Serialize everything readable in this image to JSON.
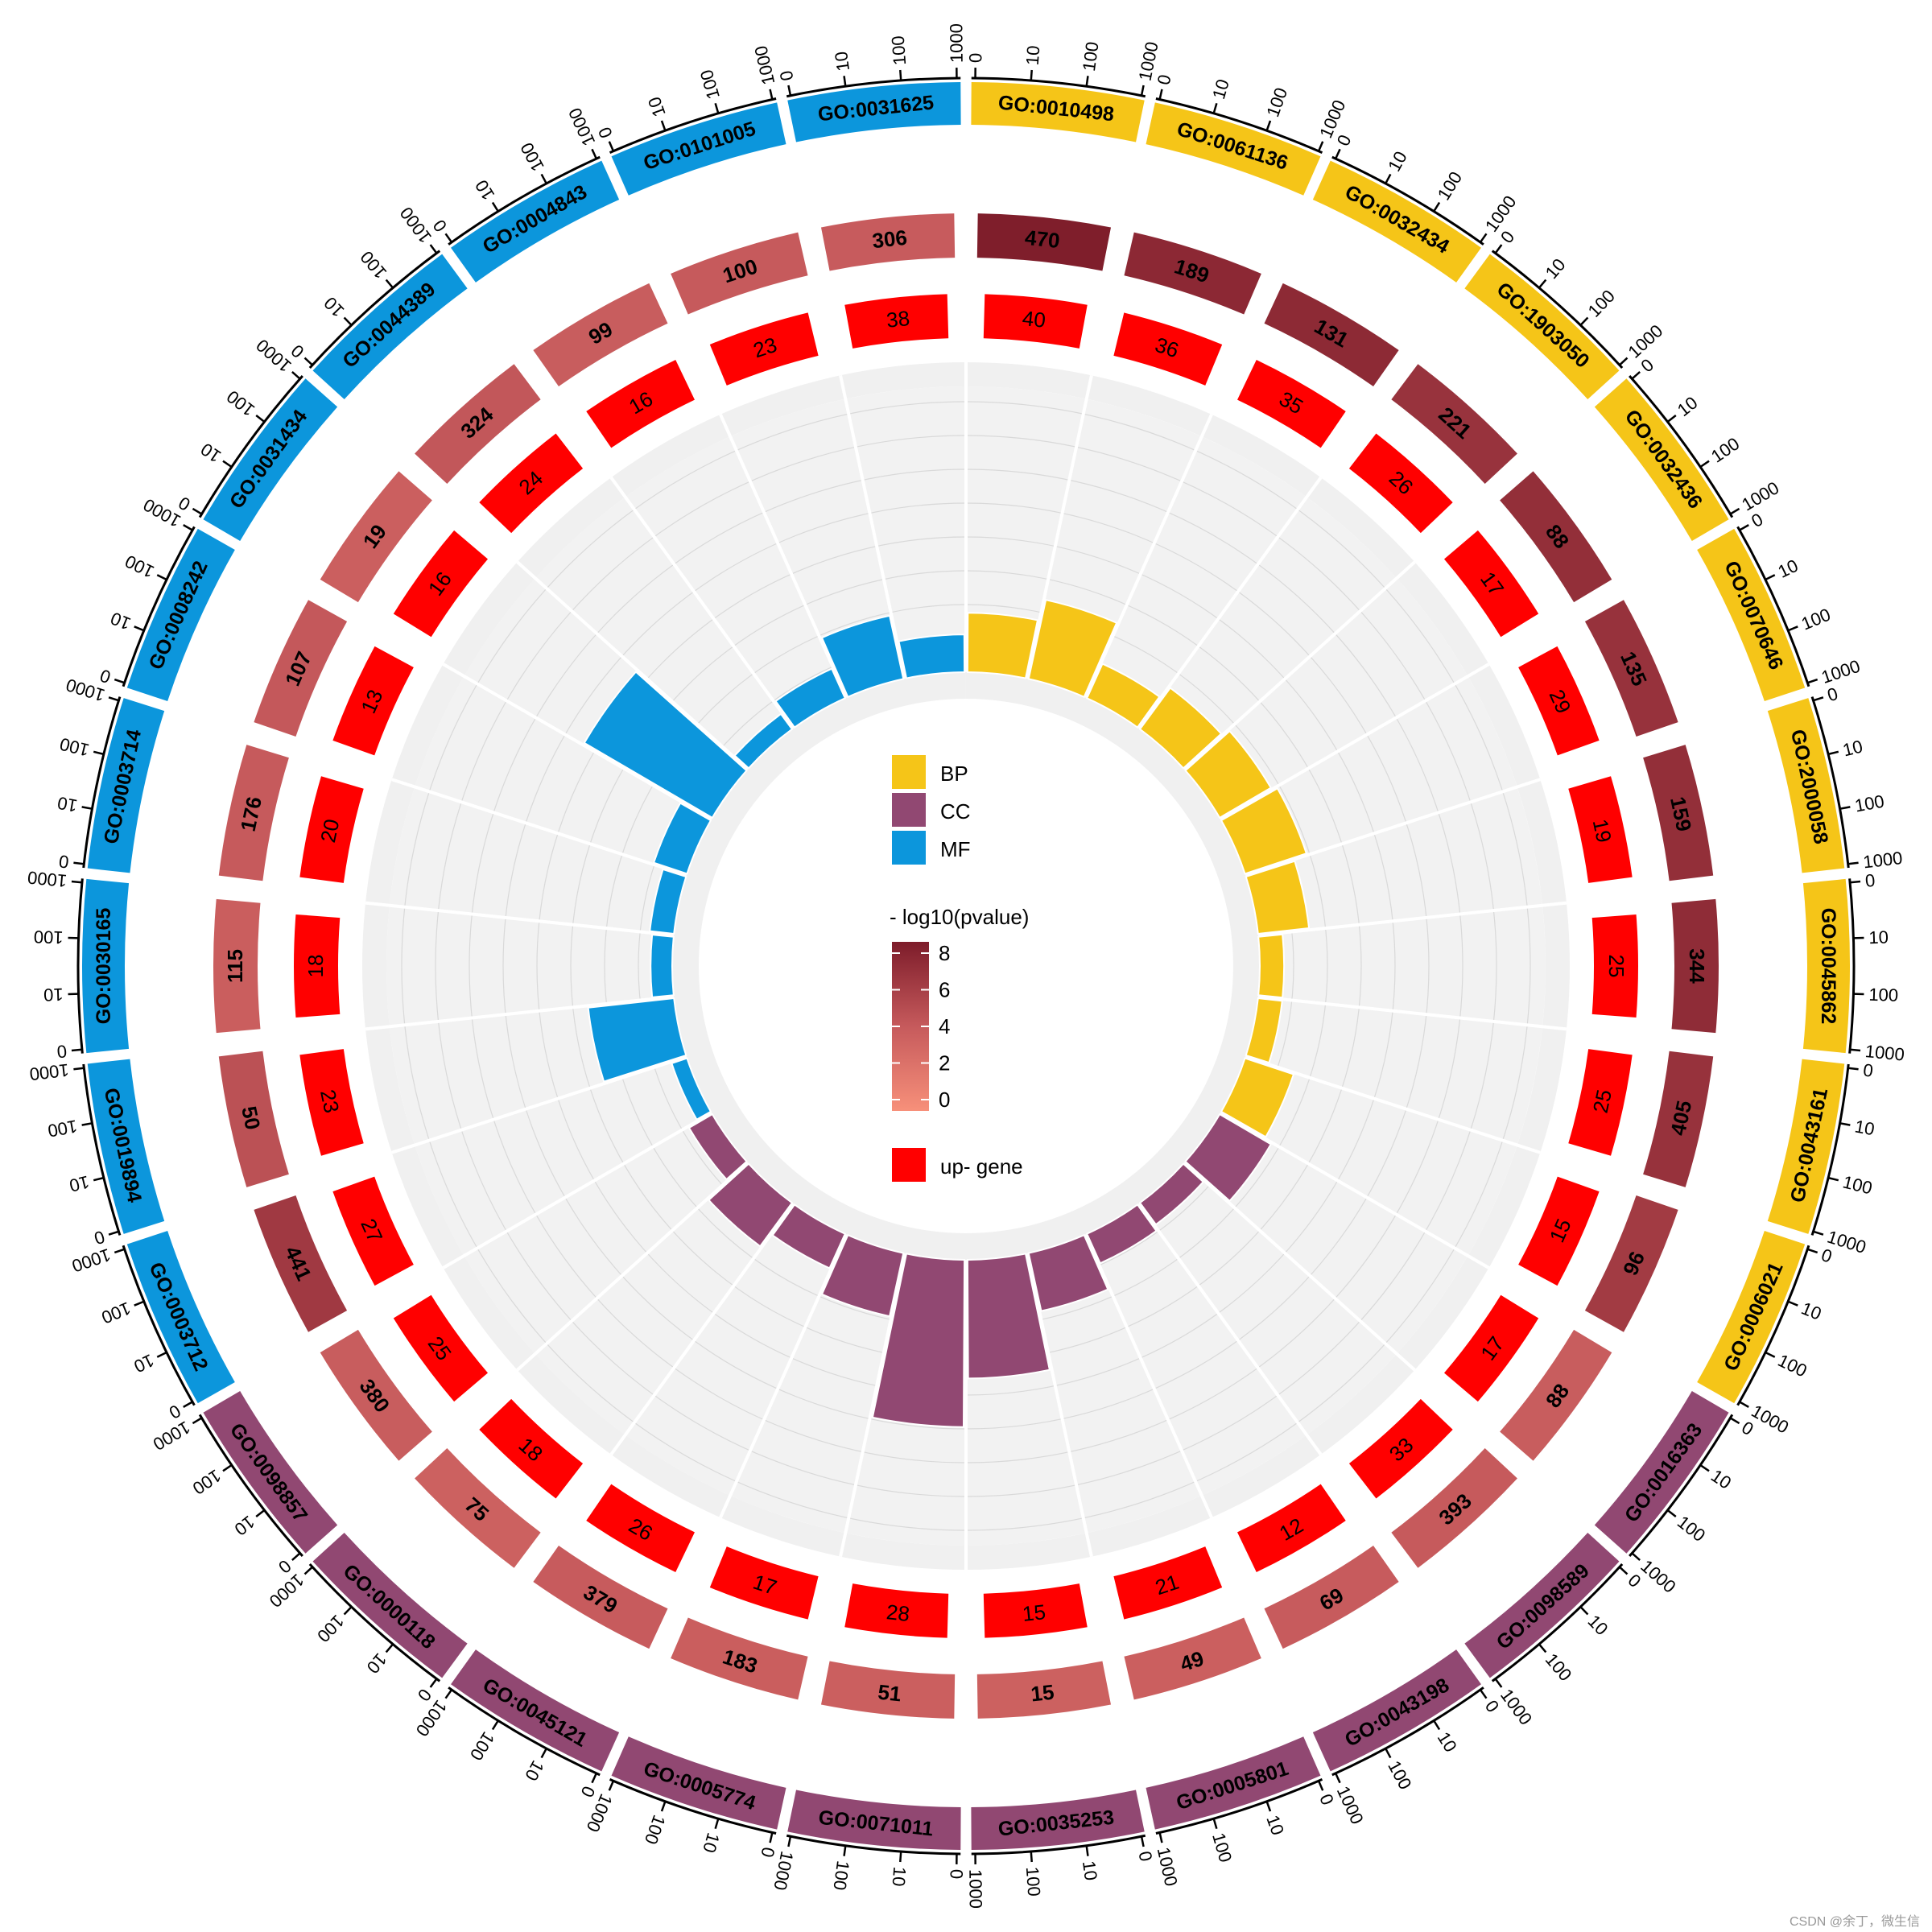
{
  "chart_data": {
    "type": "circular-go-enrichment",
    "categories_legend": [
      {
        "key": "BP",
        "label": "BP",
        "color": "#f5c518"
      },
      {
        "key": "CC",
        "label": "CC",
        "color": "#914872"
      },
      {
        "key": "MF",
        "label": "MF",
        "color": "#0c96dc"
      }
    ],
    "gradient_legend": {
      "title": "- log10(pvalue)",
      "ticks": [
        "8",
        "6",
        "4",
        "2",
        "0"
      ],
      "low_color": "#f7907a",
      "high_color": "#7d1c2a"
    },
    "up_legend": {
      "label": "up- gene",
      "color": "#ff0000"
    },
    "scale_ticks": [
      "0",
      "10",
      "100",
      "1000"
    ],
    "terms": [
      {
        "id": "GO:0010498",
        "cat": "BP",
        "count": 470,
        "up": 40,
        "pval": 7.9,
        "bar": 0.22
      },
      {
        "id": "GO:0061136",
        "cat": "BP",
        "count": 189,
        "up": 36,
        "pval": 7.2,
        "bar": 0.3
      },
      {
        "id": "GO:0032434",
        "cat": "BP",
        "count": 131,
        "up": 35,
        "pval": 7.1,
        "bar": 0.14
      },
      {
        "id": "GO:1903050",
        "cat": "BP",
        "count": 221,
        "up": 26,
        "pval": 6.5,
        "bar": 0.19
      },
      {
        "id": "GO:0032436",
        "cat": "BP",
        "count": 88,
        "up": 17,
        "pval": 6.8,
        "bar": 0.22
      },
      {
        "id": "GO:0070646",
        "cat": "BP",
        "count": 135,
        "up": 29,
        "pval": 6.6,
        "bar": 0.24
      },
      {
        "id": "GO:2000058",
        "cat": "BP",
        "count": 159,
        "up": 19,
        "pval": 6.8,
        "bar": 0.19
      },
      {
        "id": "GO:0045862",
        "cat": "BP",
        "count": 344,
        "up": 25,
        "pval": 7.0,
        "bar": 0.09
      },
      {
        "id": "GO:0043161",
        "cat": "BP",
        "count": 405,
        "up": 25,
        "pval": 6.6,
        "bar": 0.09
      },
      {
        "id": "GO:0006021",
        "cat": "BP",
        "count": 96,
        "up": 15,
        "pval": 6.0,
        "bar": 0.19
      },
      {
        "id": "GO:0016363",
        "cat": "CC",
        "count": 88,
        "up": 17,
        "pval": 3.8,
        "bar": 0.22
      },
      {
        "id": "GO:0098589",
        "cat": "CC",
        "count": 393,
        "up": 33,
        "pval": 4.0,
        "bar": 0.1
      },
      {
        "id": "GO:0043198",
        "cat": "CC",
        "count": 69,
        "up": 12,
        "pval": 3.9,
        "bar": 0.12
      },
      {
        "id": "GO:0005801",
        "cat": "CC",
        "count": 49,
        "up": 21,
        "pval": 3.6,
        "bar": 0.22
      },
      {
        "id": "GO:0035253",
        "cat": "CC",
        "count": 15,
        "up": 15,
        "pval": 3.5,
        "bar": 0.44
      },
      {
        "id": "GO:0071011",
        "cat": "CC",
        "count": 51,
        "up": 28,
        "pval": 3.6,
        "bar": 0.62
      },
      {
        "id": "GO:0005774",
        "cat": "CC",
        "count": 183,
        "up": 17,
        "pval": 3.7,
        "bar": 0.24
      },
      {
        "id": "GO:0045121",
        "cat": "CC",
        "count": 379,
        "up": 26,
        "pval": 3.9,
        "bar": 0.14
      },
      {
        "id": "GO:0000118",
        "cat": "CC",
        "count": 75,
        "up": 18,
        "pval": 3.5,
        "bar": 0.2
      },
      {
        "id": "GO:0098857",
        "cat": "CC",
        "count": 380,
        "up": 25,
        "pval": 3.8,
        "bar": 0.1
      },
      {
        "id": "GO:0003712",
        "cat": "MF",
        "count": 441,
        "up": 27,
        "pval": 6.1,
        "bar": 0.06
      },
      {
        "id": "GO:0019894",
        "cat": "MF",
        "count": 50,
        "up": 23,
        "pval": 4.6,
        "bar": 0.32
      },
      {
        "id": "GO:0030165",
        "cat": "MF",
        "count": 115,
        "up": 18,
        "pval": 3.7,
        "bar": 0.08
      },
      {
        "id": "GO:0003714",
        "cat": "MF",
        "count": 176,
        "up": 20,
        "pval": 4.0,
        "bar": 0.09
      },
      {
        "id": "GO:0008242",
        "cat": "MF",
        "count": 107,
        "up": 13,
        "pval": 4.1,
        "bar": 0.13
      },
      {
        "id": "GO:0031434",
        "cat": "MF",
        "count": 19,
        "up": 16,
        "pval": 3.6,
        "bar": 0.55
      },
      {
        "id": "GO:0044389",
        "cat": "MF",
        "count": 324,
        "up": 24,
        "pval": 4.2,
        "bar": 0.07
      },
      {
        "id": "GO:0004843",
        "cat": "MF",
        "count": 99,
        "up": 16,
        "pval": 3.8,
        "bar": 0.12
      },
      {
        "id": "GO:0101005",
        "cat": "MF",
        "count": 100,
        "up": 23,
        "pval": 4.0,
        "bar": 0.24
      },
      {
        "id": "GO:0031625",
        "cat": "MF",
        "count": 306,
        "up": 38,
        "pval": 3.9,
        "bar": 0.14
      }
    ]
  },
  "watermark": "CSDN @余丁，微生信"
}
